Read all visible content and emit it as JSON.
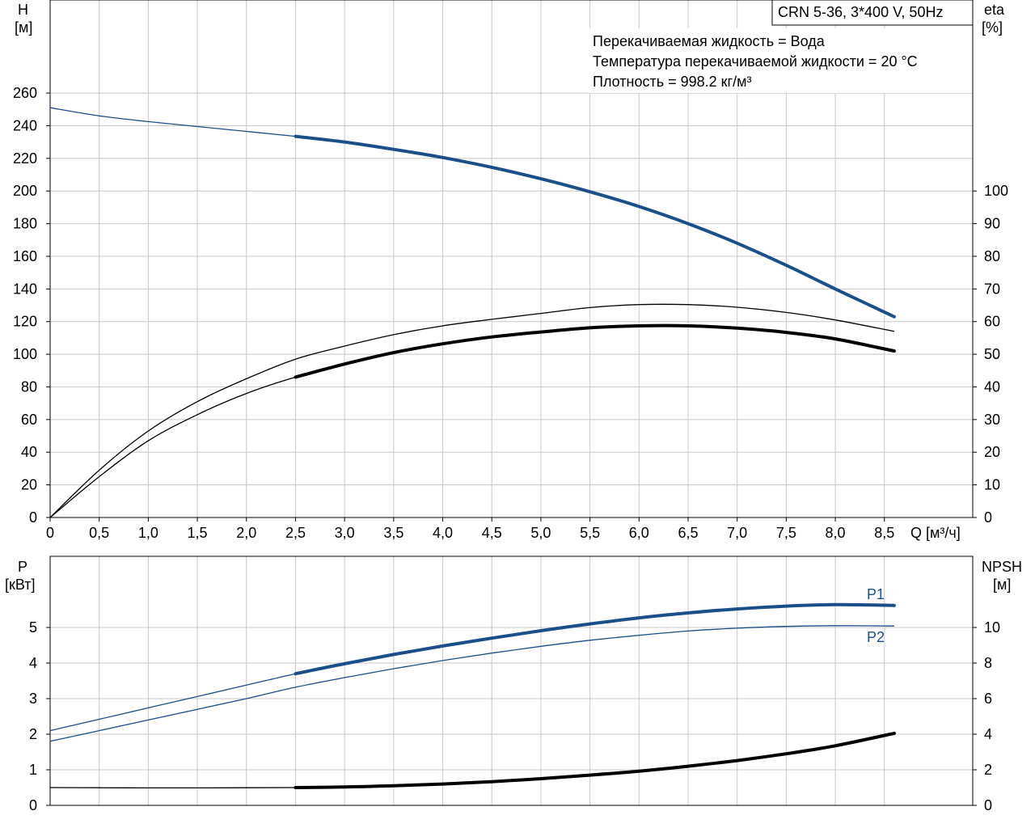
{
  "chart_data": [
    {
      "type": "line",
      "title": "CRN 5-36, 3*400 V, 50Hz",
      "annotations": [
        "Перекачиваемая жидкость = Вода",
        "Температура перекачиваемой жидкости = 20 °C",
        "Плотность = 998.2 кг/м³"
      ],
      "x_axis": {
        "label": "Q [м³/ч]",
        "range": [
          0,
          9.4
        ],
        "ticks": [
          0,
          0.5,
          1.0,
          1.5,
          2.0,
          2.5,
          3.0,
          3.5,
          4.0,
          4.5,
          5.0,
          5.5,
          6.0,
          6.5,
          7.0,
          7.5,
          8.0,
          8.5
        ],
        "tick_labels": [
          "0",
          "0,5",
          "1,0",
          "1,5",
          "2,0",
          "2,5",
          "3,0",
          "3,5",
          "4,0",
          "4,5",
          "5,0",
          "5,5",
          "6,0",
          "6,5",
          "7,0",
          "7,5",
          "8,0",
          "8,5"
        ]
      },
      "y_left": {
        "label_line1": "H",
        "label_line2": "[м]",
        "range": [
          0,
          317
        ],
        "ticks": [
          0,
          20,
          40,
          60,
          80,
          100,
          120,
          140,
          160,
          180,
          200,
          220,
          240,
          260
        ],
        "tick_labels": [
          "0",
          "20",
          "40",
          "60",
          "80",
          "100",
          "120",
          "140",
          "160",
          "180",
          "200",
          "220",
          "240",
          "260"
        ]
      },
      "y_right": {
        "label_line1": "eta",
        "label_line2": "[%]",
        "range": [
          0,
          158.5
        ],
        "ticks": [
          0,
          10,
          20,
          30,
          40,
          50,
          60,
          70,
          80,
          90,
          100
        ],
        "tick_labels": [
          "0",
          "10",
          "20",
          "30",
          "40",
          "50",
          "60",
          "70",
          "80",
          "90",
          "100"
        ]
      },
      "grid": true,
      "series": [
        {
          "axis": "left",
          "color": "#1a4f8a",
          "bold_from_x": 2.5,
          "x": [
            0,
            0.5,
            1.0,
            1.5,
            2.0,
            2.5,
            3.0,
            3.5,
            4.0,
            4.5,
            5.0,
            5.5,
            6.0,
            6.5,
            7.0,
            7.5,
            8.0,
            8.6
          ],
          "y": [
            251,
            246,
            242.5,
            239.5,
            236.5,
            233.5,
            230,
            225.5,
            220.5,
            214.5,
            207.5,
            199.5,
            190.5,
            180,
            168,
            154.5,
            140,
            123
          ]
        },
        {
          "axis": "right",
          "color": "#000000",
          "bold_from_x": 999,
          "x": [
            0,
            0.5,
            1.0,
            1.5,
            2.0,
            2.5,
            3.0,
            3.5,
            4.0,
            4.5,
            5.0,
            5.5,
            6.0,
            6.5,
            7.0,
            7.5,
            8.0,
            8.6
          ],
          "y": [
            0,
            14.5,
            26.5,
            35.5,
            42.5,
            48.5,
            52.5,
            56,
            58.7,
            60.7,
            62.5,
            64.3,
            65.2,
            65.2,
            64.4,
            62.8,
            60.5,
            57
          ]
        },
        {
          "axis": "right",
          "color": "#000000",
          "bold_from_x": 2.5,
          "x": [
            0,
            0.5,
            1.0,
            1.5,
            2.0,
            2.5,
            3.0,
            3.5,
            4.0,
            4.5,
            5.0,
            5.5,
            6.0,
            6.5,
            7.0,
            7.5,
            8.0,
            8.6
          ],
          "y": [
            0,
            12.5,
            23.5,
            31.5,
            38,
            43,
            47,
            50.5,
            53.2,
            55.3,
            56.8,
            58.1,
            58.7,
            58.7,
            58,
            56.7,
            54.7,
            51
          ]
        }
      ]
    },
    {
      "type": "line",
      "x_axis": {
        "range": [
          0,
          9.4
        ],
        "ticks": [
          0,
          0.5,
          1.0,
          1.5,
          2.0,
          2.5,
          3.0,
          3.5,
          4.0,
          4.5,
          5.0,
          5.5,
          6.0,
          6.5,
          7.0,
          7.5,
          8.0,
          8.5
        ]
      },
      "y_left": {
        "label_line1": "P",
        "label_line2": "[кВт]",
        "range": [
          0,
          7
        ],
        "ticks": [
          0,
          1,
          2,
          3,
          4,
          5
        ],
        "tick_labels": [
          "0",
          "1",
          "2",
          "3",
          "4",
          "5"
        ]
      },
      "y_right": {
        "label_line1": "NPSH",
        "label_line2": "[м]",
        "range": [
          0,
          14
        ],
        "ticks": [
          0,
          2,
          4,
          6,
          8,
          10
        ],
        "tick_labels": [
          "0",
          "2",
          "4",
          "6",
          "8",
          "10"
        ]
      },
      "grid": true,
      "series": [
        {
          "name": "P1",
          "axis": "left",
          "color": "#1a4f8a",
          "bold_from_x": 2.5,
          "x": [
            0,
            0.5,
            1.0,
            1.5,
            2.0,
            2.5,
            3.0,
            3.5,
            4.0,
            4.5,
            5.0,
            5.5,
            6.0,
            6.5,
            7.0,
            7.5,
            8.0,
            8.6
          ],
          "y": [
            2.1,
            2.42,
            2.74,
            3.06,
            3.38,
            3.7,
            3.98,
            4.24,
            4.48,
            4.7,
            4.91,
            5.1,
            5.27,
            5.41,
            5.52,
            5.6,
            5.64,
            5.62
          ]
        },
        {
          "name": "P2",
          "axis": "left",
          "color": "#1a4f8a",
          "bold_from_x": 999,
          "x": [
            0,
            0.5,
            1.0,
            1.5,
            2.0,
            2.5,
            3.0,
            3.5,
            4.0,
            4.5,
            5.0,
            5.5,
            6.0,
            6.5,
            7.0,
            7.5,
            8.0,
            8.6
          ],
          "y": [
            1.8,
            2.1,
            2.4,
            2.7,
            3.0,
            3.32,
            3.59,
            3.84,
            4.07,
            4.28,
            4.47,
            4.64,
            4.78,
            4.9,
            4.98,
            5.03,
            5.05,
            5.04
          ]
        },
        {
          "axis": "right",
          "color": "#000000",
          "bold_from_x": 2.5,
          "x": [
            0,
            0.5,
            1.0,
            1.5,
            2.0,
            2.5,
            3.0,
            3.5,
            4.0,
            4.5,
            5.0,
            5.5,
            6.0,
            6.5,
            7.0,
            7.5,
            8.0,
            8.6
          ],
          "y": [
            1.0,
            0.99,
            0.98,
            0.98,
            0.99,
            1.0,
            1.03,
            1.1,
            1.2,
            1.33,
            1.5,
            1.7,
            1.92,
            2.2,
            2.52,
            2.9,
            3.35,
            4.05
          ]
        }
      ]
    }
  ]
}
